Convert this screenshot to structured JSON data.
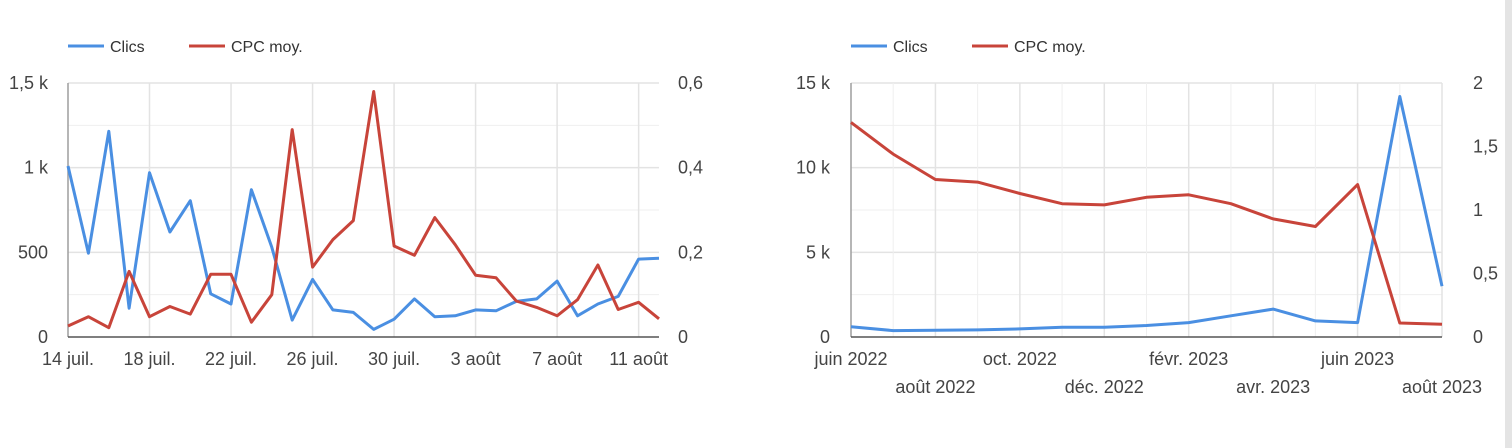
{
  "colors": {
    "clicks": "#4a8fe2",
    "cpc": "#c8443a",
    "grid": "#e3e3e3",
    "axis": "#9e9e9e",
    "text": "#444444"
  },
  "chart_data": [
    {
      "type": "line",
      "legend": [
        {
          "label": "Clics",
          "color": "#4a8fe2"
        },
        {
          "label": "CPC moy.",
          "color": "#c8443a"
        }
      ],
      "ylim_left": [
        0,
        1500
      ],
      "ylim_right": [
        0,
        0.6
      ],
      "yticks_left": [
        {
          "value": 0,
          "label": "0"
        },
        {
          "value": 500,
          "label": "500"
        },
        {
          "value": 1000,
          "label": "1 k"
        },
        {
          "value": 1500,
          "label": "1,5 k"
        }
      ],
      "yticks_right": [
        {
          "value": 0,
          "label": "0"
        },
        {
          "value": 0.2,
          "label": "0,2"
        },
        {
          "value": 0.4,
          "label": "0,4"
        },
        {
          "value": 0.6,
          "label": "0,6"
        }
      ],
      "x": [
        "14 juil.",
        "15 juil.",
        "16 juil.",
        "17 juil.",
        "18 juil.",
        "19 juil.",
        "20 juil.",
        "21 juil.",
        "22 juil.",
        "23 juil.",
        "24 juil.",
        "25 juil.",
        "26 juil.",
        "27 juil.",
        "28 juil.",
        "29 juil.",
        "30 juil.",
        "31 juil.",
        "1 août",
        "2 août",
        "3 août",
        "4 août",
        "5 août",
        "6 août",
        "7 août",
        "8 août",
        "9 août",
        "10 août",
        "11 août",
        "12 août"
      ],
      "xticks": [
        {
          "index": 0,
          "label": "14 juil."
        },
        {
          "index": 4,
          "label": "18 juil."
        },
        {
          "index": 8,
          "label": "22 juil."
        },
        {
          "index": 12,
          "label": "26 juil."
        },
        {
          "index": 16,
          "label": "30 juil."
        },
        {
          "index": 20,
          "label": "3 août"
        },
        {
          "index": 24,
          "label": "7 août"
        },
        {
          "index": 28,
          "label": "11 août"
        }
      ],
      "series": [
        {
          "name": "Clics",
          "axis": "left",
          "values": [
            1010,
            495,
            1215,
            170,
            970,
            620,
            805,
            255,
            195,
            870,
            530,
            100,
            340,
            160,
            145,
            45,
            105,
            225,
            120,
            125,
            160,
            155,
            210,
            225,
            330,
            125,
            195,
            240,
            460,
            465
          ]
        },
        {
          "name": "CPC moy.",
          "axis": "right",
          "values": [
            0.026,
            0.048,
            0.022,
            0.155,
            0.048,
            0.072,
            0.054,
            0.148,
            0.148,
            0.035,
            0.1,
            0.49,
            0.165,
            0.23,
            0.275,
            0.58,
            0.215,
            0.193,
            0.282,
            0.218,
            0.146,
            0.14,
            0.085,
            0.07,
            0.05,
            0.088,
            0.17,
            0.065,
            0.082,
            0.043
          ]
        }
      ]
    },
    {
      "type": "line",
      "legend": [
        {
          "label": "Clics",
          "color": "#4a8fe2"
        },
        {
          "label": "CPC moy.",
          "color": "#c8443a"
        }
      ],
      "ylim_left": [
        0,
        15000
      ],
      "ylim_right": [
        0,
        2
      ],
      "yticks_left": [
        {
          "value": 0,
          "label": "0"
        },
        {
          "value": 5000,
          "label": "5 k"
        },
        {
          "value": 10000,
          "label": "10 k"
        },
        {
          "value": 15000,
          "label": "15 k"
        }
      ],
      "yticks_right": [
        {
          "value": 0,
          "label": "0"
        },
        {
          "value": 0.5,
          "label": "0,5"
        },
        {
          "value": 1,
          "label": "1"
        },
        {
          "value": 1.5,
          "label": "1,5"
        },
        {
          "value": 2,
          "label": "2"
        }
      ],
      "x": [
        "juin 2022",
        "juil. 2022",
        "août 2022",
        "sept. 2022",
        "oct. 2022",
        "nov. 2022",
        "déc. 2022",
        "janv. 2023",
        "févr. 2023",
        "mars 2023",
        "avr. 2023",
        "mai 2023",
        "juin 2023",
        "juil. 2023",
        "août 2023"
      ],
      "xticks": [
        {
          "index": 0,
          "label": "juin 2022",
          "row": 0
        },
        {
          "index": 2,
          "label": "août 2022",
          "row": 1
        },
        {
          "index": 4,
          "label": "oct. 2022",
          "row": 0
        },
        {
          "index": 6,
          "label": "déc. 2022",
          "row": 1
        },
        {
          "index": 8,
          "label": "févr. 2023",
          "row": 0
        },
        {
          "index": 10,
          "label": "avr. 2023",
          "row": 1
        },
        {
          "index": 12,
          "label": "juin 2023",
          "row": 0
        },
        {
          "index": 14,
          "label": "août 2023",
          "row": 1
        }
      ],
      "series": [
        {
          "name": "Clics",
          "axis": "left",
          "values": [
            600,
            380,
            400,
            420,
            480,
            570,
            580,
            680,
            850,
            1250,
            1650,
            950,
            850,
            14200,
            3000
          ]
        },
        {
          "name": "CPC moy.",
          "axis": "right",
          "values": [
            1.69,
            1.44,
            1.24,
            1.22,
            1.13,
            1.05,
            1.04,
            1.1,
            1.12,
            1.05,
            0.93,
            0.87,
            1.2,
            0.11,
            0.1
          ]
        }
      ]
    }
  ]
}
